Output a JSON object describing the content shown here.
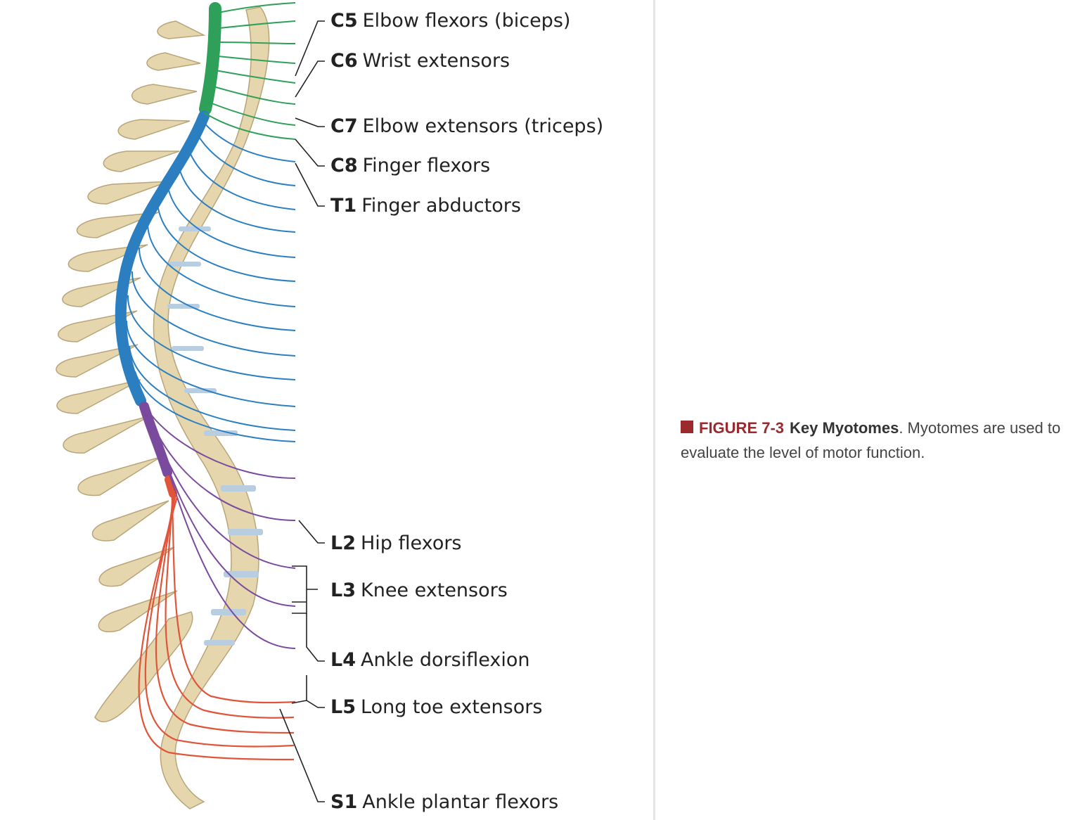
{
  "figure": {
    "labels": [
      {
        "level": "C5",
        "text": "Elbow flexors (biceps)"
      },
      {
        "level": "C6",
        "text": "Wrist extensors"
      },
      {
        "level": "C7",
        "text": "Elbow extensors (triceps)"
      },
      {
        "level": "C8",
        "text": "Finger flexors"
      },
      {
        "level": "T1",
        "text": "Finger abductors"
      },
      {
        "level": "L2",
        "text": "Hip flexors"
      },
      {
        "level": "L3",
        "text": "Knee extensors"
      },
      {
        "level": "L4",
        "text": "Ankle dorsiflexion"
      },
      {
        "level": "L5",
        "text": "Long toe extensors"
      },
      {
        "level": "S1",
        "text": "Ankle plantar flexors"
      }
    ],
    "colors": {
      "cervical": "#2fa05a",
      "thoracic": "#2b7fc1",
      "lumbar": "#7a4a9e",
      "sacral": "#e0553a",
      "bone": "#e6d6ad",
      "disc": "#b9cde0"
    }
  },
  "caption": {
    "figure_number": "FIGURE 7-3",
    "title": "Key Myotomes",
    "text": ". Myotomes are used to evaluate the level of motor function.",
    "accent_color": "#9b2a2f"
  }
}
